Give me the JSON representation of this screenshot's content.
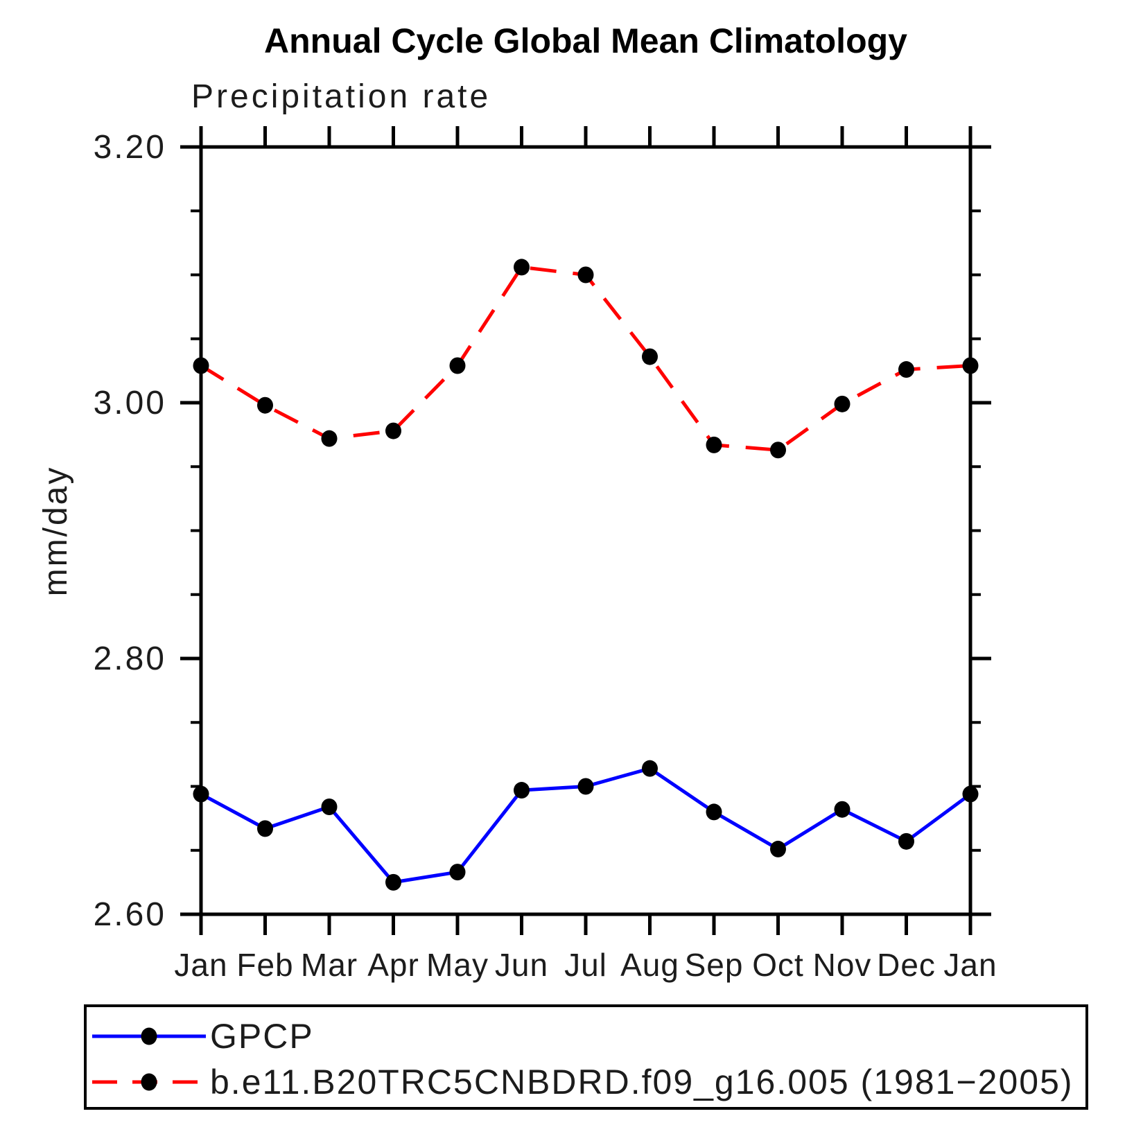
{
  "title": "Annual Cycle Global Mean Climatology",
  "subtitle": "Precipitation rate",
  "chart_data": {
    "type": "line",
    "title": "Annual Cycle Global Mean Climatology",
    "subtitle": "Precipitation rate",
    "xlabel": "",
    "ylabel": "mm/day",
    "x_categories": [
      "Jan",
      "Feb",
      "Mar",
      "Apr",
      "May",
      "Jun",
      "Jul",
      "Aug",
      "Sep",
      "Oct",
      "Nov",
      "Dec",
      "Jan"
    ],
    "ylim": [
      2.6,
      3.2
    ],
    "ytick_major": [
      3.2,
      3.0,
      2.8,
      2.6
    ],
    "ytick_major_labels": [
      "3.20",
      "3.00",
      "2.80",
      "2.60"
    ],
    "ytick_minor": [
      3.15,
      3.1,
      3.05,
      2.95,
      2.9,
      2.85,
      2.75,
      2.7,
      2.65
    ],
    "grid": false,
    "legend_position": "bottom-left",
    "series": [
      {
        "name": "GPCP",
        "color": "#0000ff",
        "line_style": "solid",
        "marker": "filled-black-dot",
        "values": [
          2.694,
          2.667,
          2.684,
          2.625,
          2.633,
          2.697,
          2.7,
          2.714,
          2.68,
          2.651,
          2.682,
          2.657,
          2.694
        ]
      },
      {
        "name": "b.e11.B20TRC5CNBDRD.f09_g16.005 (1981−2005)",
        "color": "#ff0000",
        "line_style": "dashed",
        "marker": "filled-black-dot",
        "values": [
          3.029,
          2.998,
          2.972,
          2.978,
          3.029,
          3.106,
          3.1,
          3.036,
          2.967,
          2.963,
          2.999,
          3.026,
          3.029
        ]
      }
    ]
  },
  "colors": {
    "background": "#ffffff",
    "axis": "#000000",
    "marker": "#000000",
    "text": "#1c1c1c",
    "series_gpcp": "#0000ff",
    "series_model": "#ff0000"
  }
}
